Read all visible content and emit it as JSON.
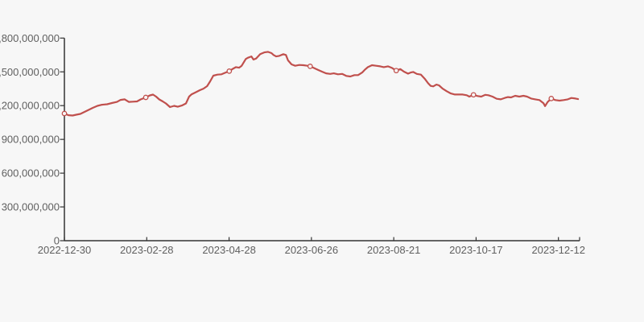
{
  "page": {
    "background_color": "#f7f7f7"
  },
  "chart_data": {
    "type": "line",
    "title": "",
    "legend": "none",
    "grid": false,
    "axis_color": "#333333",
    "label_color": "#606060",
    "series_color": "#c0504d",
    "marker_style": "hollow-circle",
    "x_tick_labels": [
      "2022-12-30",
      "2023-02-28",
      "2023-04-28",
      "2023-06-26",
      "2023-08-21",
      "2023-10-17",
      "2023-12-12"
    ],
    "y_tick_labels": [
      "0",
      "300,000,000",
      "600,000,000",
      "900,000,000",
      "1,200,000,000",
      "1,500,000,000",
      "1,800,000,000"
    ],
    "ylim": [
      0,
      1800000000
    ],
    "x_range": [
      "2022-12-30",
      "2023-12-12"
    ],
    "value_note": "point values in millions; t = fraction of x-axis from first tick",
    "points_t_v_millions": [
      [
        0.0,
        1130
      ],
      [
        0.008,
        1115
      ],
      [
        0.016,
        1112
      ],
      [
        0.023,
        1119
      ],
      [
        0.031,
        1126
      ],
      [
        0.039,
        1144
      ],
      [
        0.047,
        1162
      ],
      [
        0.055,
        1180
      ],
      [
        0.064,
        1198
      ],
      [
        0.073,
        1208
      ],
      [
        0.083,
        1212
      ],
      [
        0.092,
        1223
      ],
      [
        0.102,
        1233
      ],
      [
        0.109,
        1251
      ],
      [
        0.117,
        1256
      ],
      [
        0.125,
        1233
      ],
      [
        0.133,
        1235
      ],
      [
        0.141,
        1237
      ],
      [
        0.148,
        1255
      ],
      [
        0.158,
        1273
      ],
      [
        0.166,
        1291
      ],
      [
        0.172,
        1298
      ],
      [
        0.178,
        1280
      ],
      [
        0.184,
        1255
      ],
      [
        0.191,
        1237
      ],
      [
        0.197,
        1219
      ],
      [
        0.205,
        1187
      ],
      [
        0.213,
        1198
      ],
      [
        0.22,
        1190
      ],
      [
        0.228,
        1201
      ],
      [
        0.236,
        1219
      ],
      [
        0.242,
        1280
      ],
      [
        0.247,
        1301
      ],
      [
        0.255,
        1319
      ],
      [
        0.263,
        1337
      ],
      [
        0.27,
        1351
      ],
      [
        0.277,
        1373
      ],
      [
        0.283,
        1416
      ],
      [
        0.289,
        1466
      ],
      [
        0.297,
        1475
      ],
      [
        0.305,
        1478
      ],
      [
        0.313,
        1494
      ],
      [
        0.32,
        1506
      ],
      [
        0.328,
        1530
      ],
      [
        0.333,
        1542
      ],
      [
        0.339,
        1537
      ],
      [
        0.344,
        1554
      ],
      [
        0.352,
        1614
      ],
      [
        0.356,
        1625
      ],
      [
        0.363,
        1637
      ],
      [
        0.367,
        1609
      ],
      [
        0.372,
        1618
      ],
      [
        0.38,
        1657
      ],
      [
        0.388,
        1673
      ],
      [
        0.395,
        1678
      ],
      [
        0.402,
        1666
      ],
      [
        0.406,
        1650
      ],
      [
        0.411,
        1637
      ],
      [
        0.417,
        1642
      ],
      [
        0.425,
        1657
      ],
      [
        0.43,
        1650
      ],
      [
        0.434,
        1602
      ],
      [
        0.441,
        1566
      ],
      [
        0.448,
        1554
      ],
      [
        0.456,
        1561
      ],
      [
        0.464,
        1559
      ],
      [
        0.472,
        1554
      ],
      [
        0.477,
        1549
      ],
      [
        0.484,
        1535
      ],
      [
        0.492,
        1518
      ],
      [
        0.5,
        1502
      ],
      [
        0.508,
        1487
      ],
      [
        0.516,
        1482
      ],
      [
        0.523,
        1487
      ],
      [
        0.531,
        1478
      ],
      [
        0.539,
        1482
      ],
      [
        0.547,
        1464
      ],
      [
        0.555,
        1459
      ],
      [
        0.563,
        1471
      ],
      [
        0.57,
        1471
      ],
      [
        0.578,
        1494
      ],
      [
        0.583,
        1518
      ],
      [
        0.589,
        1542
      ],
      [
        0.597,
        1559
      ],
      [
        0.605,
        1554
      ],
      [
        0.613,
        1549
      ],
      [
        0.62,
        1542
      ],
      [
        0.628,
        1549
      ],
      [
        0.636,
        1535
      ],
      [
        0.644,
        1511
      ],
      [
        0.652,
        1525
      ],
      [
        0.659,
        1502
      ],
      [
        0.667,
        1484
      ],
      [
        0.672,
        1494
      ],
      [
        0.677,
        1499
      ],
      [
        0.684,
        1482
      ],
      [
        0.692,
        1475
      ],
      [
        0.7,
        1435
      ],
      [
        0.706,
        1399
      ],
      [
        0.711,
        1375
      ],
      [
        0.716,
        1371
      ],
      [
        0.722,
        1387
      ],
      [
        0.727,
        1380
      ],
      [
        0.734,
        1351
      ],
      [
        0.742,
        1328
      ],
      [
        0.75,
        1308
      ],
      [
        0.758,
        1299
      ],
      [
        0.766,
        1299
      ],
      [
        0.773,
        1299
      ],
      [
        0.781,
        1292
      ],
      [
        0.786,
        1280
      ],
      [
        0.794,
        1296
      ],
      [
        0.802,
        1285
      ],
      [
        0.809,
        1280
      ],
      [
        0.817,
        1296
      ],
      [
        0.823,
        1292
      ],
      [
        0.831,
        1280
      ],
      [
        0.839,
        1261
      ],
      [
        0.847,
        1256
      ],
      [
        0.855,
        1269
      ],
      [
        0.861,
        1276
      ],
      [
        0.867,
        1273
      ],
      [
        0.875,
        1287
      ],
      [
        0.883,
        1280
      ],
      [
        0.891,
        1287
      ],
      [
        0.898,
        1280
      ],
      [
        0.906,
        1263
      ],
      [
        0.914,
        1256
      ],
      [
        0.922,
        1249
      ],
      [
        0.93,
        1221
      ],
      [
        0.933,
        1196
      ],
      [
        0.938,
        1232
      ],
      [
        0.945,
        1263
      ],
      [
        0.953,
        1249
      ],
      [
        0.961,
        1244
      ],
      [
        0.969,
        1249
      ],
      [
        0.977,
        1256
      ],
      [
        0.984,
        1268
      ],
      [
        0.992,
        1263
      ],
      [
        0.997,
        1258
      ]
    ],
    "markers_t_v_millions": [
      [
        0.0,
        1130
      ],
      [
        0.158,
        1273
      ],
      [
        0.32,
        1506
      ],
      [
        0.477,
        1549
      ],
      [
        0.644,
        1511
      ],
      [
        0.794,
        1296
      ],
      [
        0.945,
        1263
      ]
    ]
  }
}
